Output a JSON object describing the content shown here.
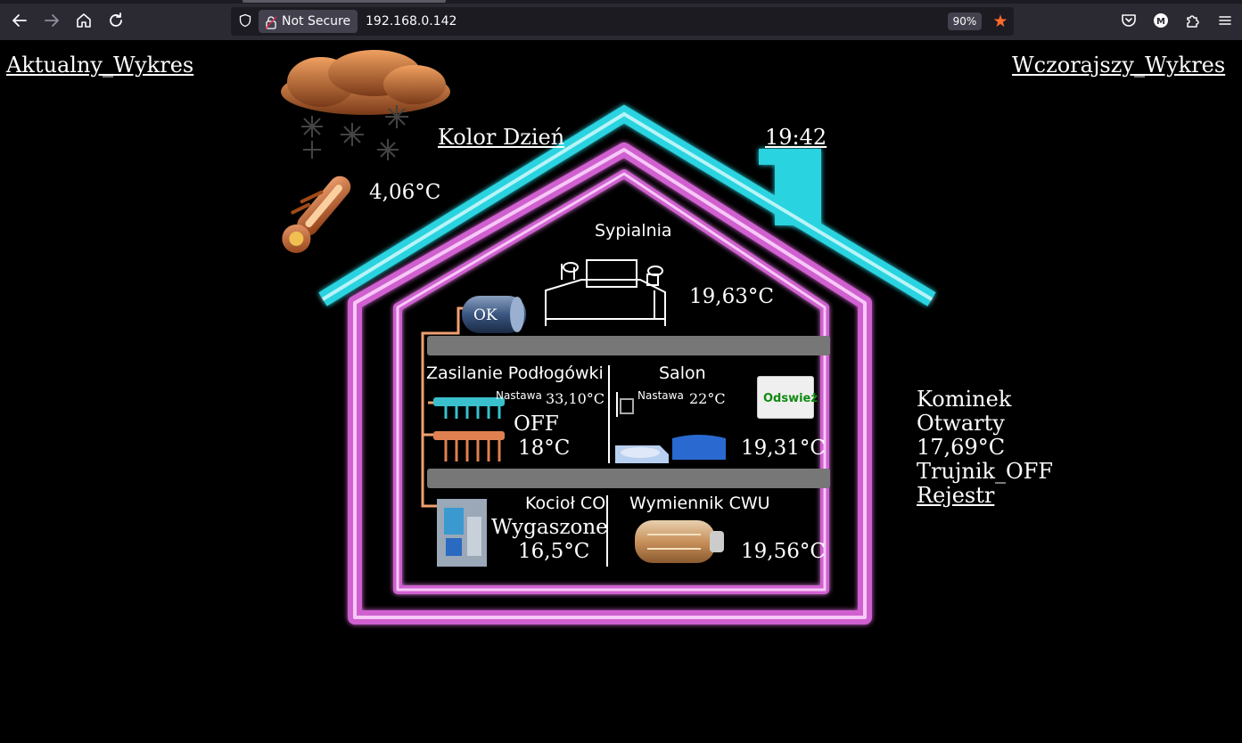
{
  "browser": {
    "security_label": "Not Secure",
    "url": "192.168.0.142",
    "zoom": "90%",
    "icons": [
      "back-icon",
      "forward-icon",
      "home-icon",
      "reload-icon",
      "shield-icon",
      "lock-icon",
      "star-icon",
      "pocket-icon",
      "account-icon",
      "extensions-icon",
      "menu-icon"
    ],
    "star_color": "#ff6b2a"
  },
  "page": {
    "link_current_chart": "Aktualny_Wykres",
    "link_yesterday_chart": "Wczorajszy_Wykres",
    "color_mode_link": "Kolor Dzień",
    "time": "19:42",
    "outdoor_temp": "4,06°C",
    "bedroom": {
      "label": "Sypialnia",
      "temp": "19,63°C"
    },
    "tank_status": "OK",
    "floor_heating": {
      "label": "Zasilanie Podłogówki",
      "setpoint_label": "Nastawa",
      "setpoint": "33,10°C",
      "state": "OFF",
      "temp": "18°C"
    },
    "living_room": {
      "label": "Salon",
      "setpoint_label": "Nastawa",
      "setpoint": "22°C",
      "temp": "19,31°C",
      "refresh_button": "Odswież"
    },
    "boiler": {
      "label": "Kocioł CO",
      "state": "Wygaszone",
      "temp": "16,5°C"
    },
    "exchanger": {
      "label": "Wymiennik CWU",
      "temp": "19,56°C"
    },
    "fireplace": {
      "label": "Kominek",
      "state": "Otwarty",
      "temp": "17,69°C",
      "valve": "Trujnik_OFF",
      "register_link": "Rejestr"
    },
    "colors": {
      "roof": "#2ad3e0",
      "house_outline": "#e070e0",
      "divider": "#777777",
      "refresh_text": "#108a10"
    }
  }
}
